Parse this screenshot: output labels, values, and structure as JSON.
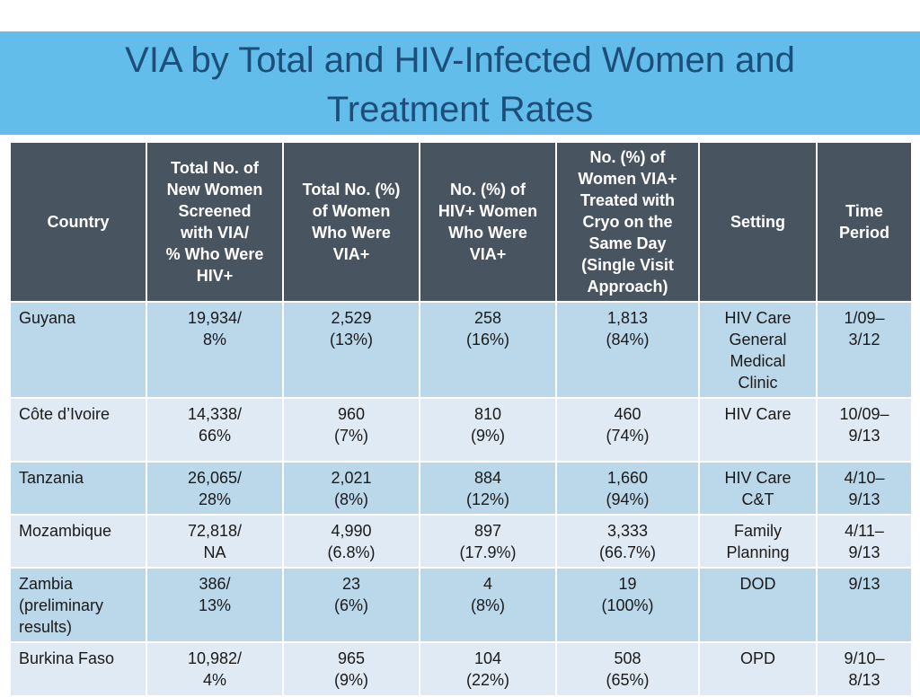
{
  "slide": {
    "title_lines": [
      "VIA by Total and HIV-Infected Women and",
      "Treatment Rates"
    ]
  },
  "table": {
    "headers": [
      [
        "Country"
      ],
      [
        "Total No. of",
        "New Women",
        "Screened",
        "with VIA/",
        "% Who Were",
        "HIV+"
      ],
      [
        "Total No. (%)",
        "of Women",
        "Who Were",
        "VIA+"
      ],
      [
        "No. (%) of",
        "HIV+ Women",
        "Who Were",
        "VIA+"
      ],
      [
        "No. (%) of",
        "Women VIA+",
        "Treated with",
        "Cryo on the",
        "Same Day",
        "(Single Visit",
        "Approach)"
      ],
      [
        "Setting"
      ],
      [
        "Time",
        "Period"
      ]
    ],
    "rows": [
      [
        [
          "Guyana"
        ],
        [
          "19,934/",
          "8%"
        ],
        [
          "2,529",
          "(13%)"
        ],
        [
          "258",
          "(16%)"
        ],
        [
          "1,813",
          "(84%)"
        ],
        [
          "HIV Care",
          "General",
          "Medical",
          "Clinic"
        ],
        [
          "1/09–",
          "3/12"
        ]
      ],
      [
        [
          "Côte d’Ivoire"
        ],
        [
          "14,338/",
          "66%"
        ],
        [
          "960",
          "(7%)"
        ],
        [
          "810",
          "(9%)"
        ],
        [
          "460",
          "(74%)"
        ],
        [
          "HIV Care"
        ],
        [
          "10/09–",
          "9/13"
        ]
      ],
      [
        [
          "Tanzania"
        ],
        [
          "26,065/",
          "28%"
        ],
        [
          "2,021",
          "(8%)"
        ],
        [
          "884",
          "(12%)"
        ],
        [
          "1,660",
          "(94%)"
        ],
        [
          "HIV Care",
          "C&T"
        ],
        [
          "4/10–",
          "9/13"
        ]
      ],
      [
        [
          "Mozambique"
        ],
        [
          "72,818/",
          "NA"
        ],
        [
          "4,990",
          "(6.8%)"
        ],
        [
          "897",
          "(17.9%)"
        ],
        [
          "3,333",
          "(66.7%)"
        ],
        [
          "Family",
          "Planning"
        ],
        [
          "4/11–",
          "9/13"
        ]
      ],
      [
        [
          "Zambia",
          "(preliminary",
          "results)"
        ],
        [
          "386/",
          "13%"
        ],
        [
          "23",
          "(6%)"
        ],
        [
          "4",
          "(8%)"
        ],
        [
          "19",
          "(100%)"
        ],
        [
          "DOD"
        ],
        [
          "9/13"
        ]
      ],
      [
        [
          "Burkina Faso"
        ],
        [
          "10,982/",
          "4%"
        ],
        [
          "965",
          "(9%)"
        ],
        [
          "104",
          "(22%)"
        ],
        [
          "508",
          "(65%)"
        ],
        [
          "OPD"
        ],
        [
          "9/10–",
          "8/13"
        ]
      ]
    ]
  },
  "colors": {
    "title_band": "#62bdea",
    "title_text": "#1d4e7a",
    "header_bg": "#48545f",
    "row_dark": "#bbd7ea",
    "row_light": "#dfeaf4"
  }
}
